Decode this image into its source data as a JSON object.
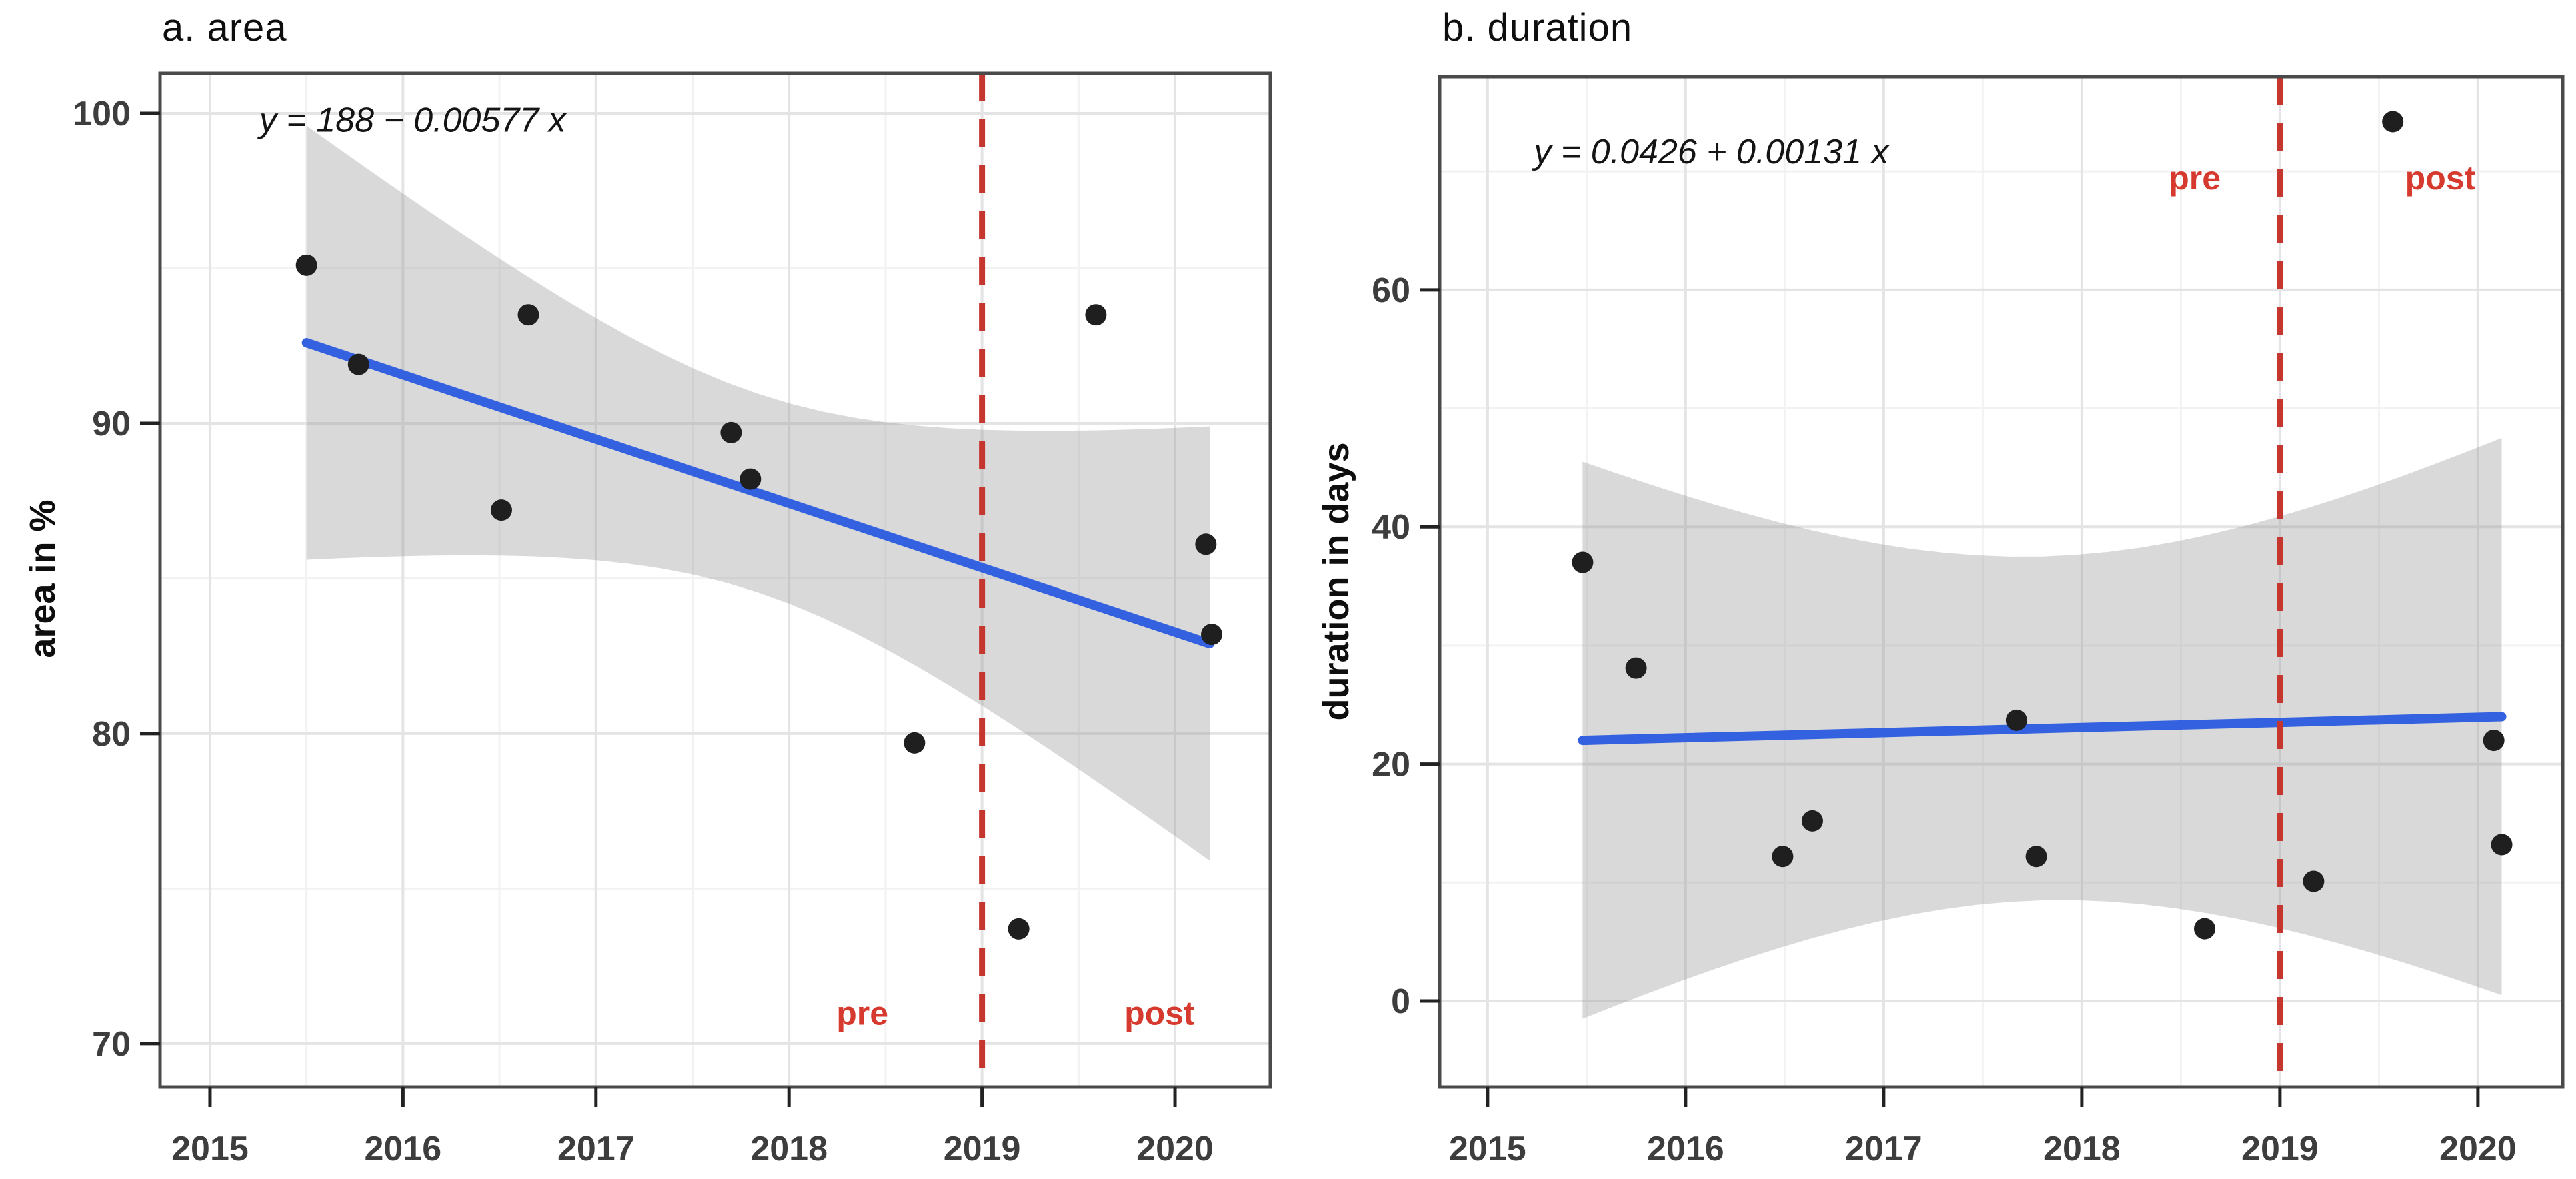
{
  "figure": {
    "kind": "two-panel scatter with linear fit and confidence band",
    "background": "#ffffff"
  },
  "colors": {
    "point": "#1f1f1f",
    "trend": "#3361e0",
    "band": "#9a9a9a",
    "band_opacity": 0.38,
    "vline": "#c5372e",
    "annotation": "#d63a2f",
    "grid_major": "#e4e4e4",
    "grid_minor": "#f2f2f2",
    "border": "#4a4a4a",
    "tick": "#222222",
    "tick_label": "#3d3d3d",
    "equation": "#141414",
    "title": "#0e0e0e"
  },
  "chart_data": [
    {
      "type": "scatter",
      "panel": "a",
      "title": "a. area",
      "ylabel": "area in %",
      "xlabel": "",
      "equation": "y = 188 − 0.00577 x",
      "equation_pos": {
        "x": 2016.05,
        "y": 99.8
      },
      "x_ticks": [
        2015,
        2016,
        2017,
        2018,
        2019,
        2020
      ],
      "x_minor": [
        2015.5,
        2016.5,
        2017.5,
        2018.5,
        2019.5,
        2020.5
      ],
      "y_ticks": [
        70,
        80,
        90,
        100
      ],
      "y_minor": [
        75,
        85,
        95
      ],
      "xlim": [
        2014.741,
        2020.494
      ],
      "ylim": [
        68.6,
        101.29
      ],
      "grid": true,
      "legend": "none",
      "points": [
        [
          2015.5,
          95.1
        ],
        [
          2015.77,
          91.9
        ],
        [
          2016.51,
          87.2
        ],
        [
          2016.65,
          93.5
        ],
        [
          2017.7,
          89.7
        ],
        [
          2017.8,
          88.2
        ],
        [
          2018.65,
          79.7
        ],
        [
          2019.19,
          73.7
        ],
        [
          2019.59,
          93.5
        ],
        [
          2020.16,
          86.1
        ],
        [
          2020.19,
          83.2
        ]
      ],
      "trend": {
        "x0": 2015.5,
        "y0": 92.6,
        "x1": 2020.18,
        "y1": 82.9
      },
      "band": {
        "margin_mid": 3.2,
        "margin_edge": 7.0
      },
      "vline_x": 2019,
      "annotations": [
        {
          "text": "pre",
          "x": 2018.38,
          "y": 71.0
        },
        {
          "text": "post",
          "x": 2019.92,
          "y": 71.0
        }
      ]
    },
    {
      "type": "scatter",
      "panel": "b",
      "title": "b. duration",
      "ylabel": "duration in days",
      "xlabel": "",
      "equation": "y = 0.0426 + 0.00131 x",
      "equation_pos": {
        "x": 2016.13,
        "y": 71.7
      },
      "x_ticks": [
        2015,
        2016,
        2017,
        2018,
        2019,
        2020
      ],
      "x_minor": [
        2015.5,
        2016.5,
        2017.5,
        2018.5,
        2019.5,
        2020.5
      ],
      "y_ticks": [
        0,
        20,
        40,
        60
      ],
      "y_minor": [
        10,
        30,
        50,
        70
      ],
      "xlim": [
        2014.758,
        2020.428
      ],
      "ylim": [
        -7.26,
        78.0
      ],
      "grid": true,
      "legend": "none",
      "points": [
        [
          2015.48,
          37.0
        ],
        [
          2015.75,
          28.1
        ],
        [
          2016.49,
          12.2
        ],
        [
          2016.64,
          15.2
        ],
        [
          2017.67,
          23.7
        ],
        [
          2017.77,
          12.2
        ],
        [
          2018.62,
          6.1
        ],
        [
          2019.17,
          10.1
        ],
        [
          2019.57,
          74.2
        ],
        [
          2020.08,
          22.0
        ],
        [
          2020.12,
          13.2
        ]
      ],
      "trend": {
        "x0": 2015.48,
        "y0": 22.0,
        "x1": 2020.12,
        "y1": 24.0
      },
      "band": {
        "margin_mid": 14.5,
        "margin_edge": 23.5
      },
      "vline_x": 2019,
      "annotations": [
        {
          "text": "pre",
          "x": 2018.57,
          "y": 69.5
        },
        {
          "text": "post",
          "x": 2019.81,
          "y": 69.5
        }
      ]
    }
  ]
}
